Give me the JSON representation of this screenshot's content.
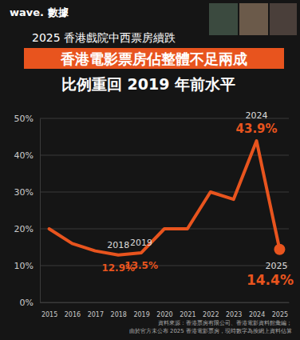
{
  "brand": "wave. 數據",
  "header": "2025 香港戲院中西票房續跌",
  "source": [
    "資料來源：香港票房有限公司、香港電影資料館彙編；",
    "由於官方未公布 2025 香港電影票房，現時數字為按網上資料估算"
  ],
  "chart_data": {
    "type": "line",
    "title": "香港電影票房佔整體不足兩成",
    "subtitle": "比例重回 2019 年前水平",
    "categories": [
      "2015",
      "2016",
      "2017",
      "2018",
      "2019",
      "2020",
      "2021",
      "2022",
      "2023",
      "2024",
      "2025"
    ],
    "values": [
      20,
      16,
      14,
      12.9,
      13.5,
      20,
      20,
      30,
      28,
      43.9,
      14.4
    ],
    "color": "#e8541e",
    "ylim": [
      0,
      50
    ],
    "yticks": [
      {
        "value": 0,
        "label": "0%"
      },
      {
        "value": 10,
        "label": "10%"
      },
      {
        "value": 20,
        "label": "20%"
      },
      {
        "value": 30,
        "label": "30%"
      },
      {
        "value": 40,
        "label": "40%"
      },
      {
        "value": 50,
        "label": "50%"
      }
    ],
    "grid": true,
    "annotations": [
      {
        "x": "2018",
        "text": "12.9%"
      },
      {
        "x": "2019",
        "text": "13.5%"
      },
      {
        "x": "2024",
        "text": "43.9%"
      },
      {
        "x": "2025",
        "text": "14.4%"
      }
    ]
  }
}
